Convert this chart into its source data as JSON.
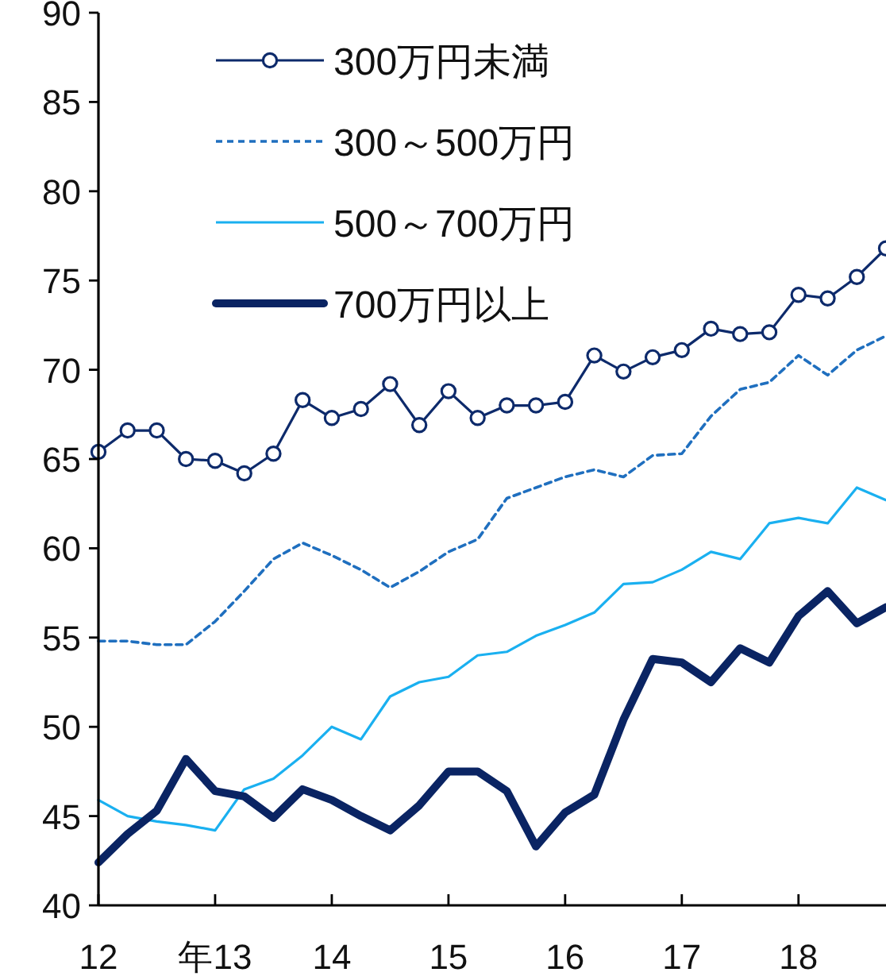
{
  "chart_data": {
    "type": "line",
    "legend": "top left",
    "grid": false,
    "x": [
      12,
      12.25,
      12.5,
      12.75,
      13,
      13.25,
      13.5,
      13.75,
      14,
      14.25,
      14.5,
      14.75,
      15,
      15.25,
      15.5,
      15.75,
      16,
      16.25,
      16.5,
      16.75,
      17,
      17.25,
      17.5,
      17.75,
      18,
      18.25,
      18.5,
      18.75
    ],
    "xlim": [
      12,
      18.75
    ],
    "xticks": [
      12,
      {
        "value": 13,
        "label": "年13"
      },
      14,
      15,
      16,
      17,
      18
    ],
    "ylim": [
      40,
      90
    ],
    "yticks": [
      40,
      45,
      50,
      55,
      60,
      65,
      70,
      75,
      80,
      85,
      90
    ],
    "series": [
      {
        "name": "300万円未満",
        "color": "#0d2a6b",
        "marker": "circle",
        "line_style": "solid",
        "values": [
          65.4,
          66.6,
          66.6,
          65.0,
          64.9,
          64.2,
          65.3,
          68.3,
          67.3,
          67.8,
          69.2,
          66.9,
          68.8,
          67.3,
          68.0,
          68.0,
          68.2,
          70.8,
          69.9,
          70.7,
          71.1,
          72.3,
          72.0,
          72.1,
          74.2,
          74.0,
          75.2,
          76.8
        ]
      },
      {
        "name": "300～500万円",
        "color": "#1f6fbf",
        "marker": "none",
        "line_style": "dashed",
        "values": [
          54.8,
          54.8,
          54.6,
          54.6,
          55.9,
          57.6,
          59.4,
          60.3,
          59.6,
          58.8,
          57.8,
          58.7,
          59.8,
          60.5,
          62.8,
          63.4,
          64.0,
          64.4,
          64.0,
          65.2,
          65.3,
          67.4,
          68.9,
          69.3,
          70.8,
          69.7,
          71.1,
          71.9
        ]
      },
      {
        "name": "500～700万円",
        "color": "#1ab0f0",
        "marker": "none",
        "line_style": "solid",
        "values": [
          45.9,
          45.0,
          44.7,
          44.5,
          44.2,
          46.5,
          47.1,
          48.4,
          50.0,
          49.3,
          51.7,
          52.5,
          52.8,
          54.0,
          54.2,
          55.1,
          55.7,
          56.4,
          58.0,
          58.1,
          58.8,
          59.8,
          59.4,
          61.4,
          61.7,
          61.4,
          63.4,
          62.7
        ]
      },
      {
        "name": "700万円以上",
        "color": "#0a2463",
        "marker": "none",
        "line_style": "solid",
        "values": [
          42.4,
          44.0,
          45.3,
          48.2,
          46.4,
          46.1,
          44.9,
          46.5,
          45.9,
          45.0,
          44.2,
          45.6,
          47.5,
          47.5,
          46.4,
          43.3,
          45.2,
          46.2,
          50.4,
          53.8,
          53.6,
          52.5,
          54.4,
          53.6,
          56.2,
          57.6,
          55.8,
          56.7
        ]
      }
    ]
  }
}
